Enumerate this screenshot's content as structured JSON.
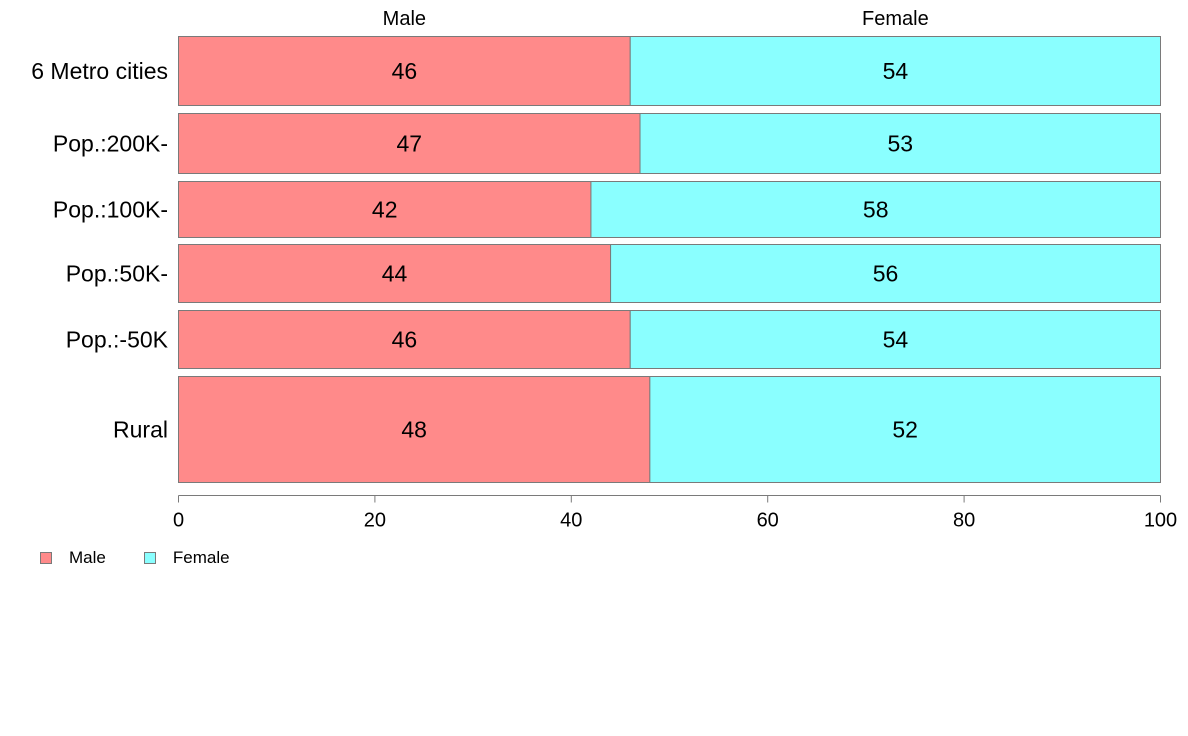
{
  "chart_data": {
    "type": "bar",
    "orientation": "horizontal",
    "stacked": true,
    "categories": [
      "6 Metro cities",
      "Pop.:200K-",
      "Pop.:100K-",
      "Pop.:50K-",
      "Pop.:-50K",
      "Rural"
    ],
    "series": [
      {
        "name": "Male",
        "values": [
          46,
          47,
          42,
          44,
          46,
          48
        ],
        "color": "#ff8a8a"
      },
      {
        "name": "Female",
        "values": [
          54,
          53,
          58,
          56,
          54,
          52
        ],
        "color": "#8affff"
      }
    ],
    "value_axis": {
      "min": 0,
      "max": 100,
      "ticks": [
        0,
        20,
        40,
        60,
        80,
        100
      ]
    },
    "column_headers": [
      "Male",
      "Female"
    ],
    "legend_position": "bottom-left",
    "grid": false
  },
  "legend": {
    "items": [
      {
        "label": "Male",
        "color": "#ff8a8a"
      },
      {
        "label": "Female",
        "color": "#8affff"
      }
    ]
  }
}
